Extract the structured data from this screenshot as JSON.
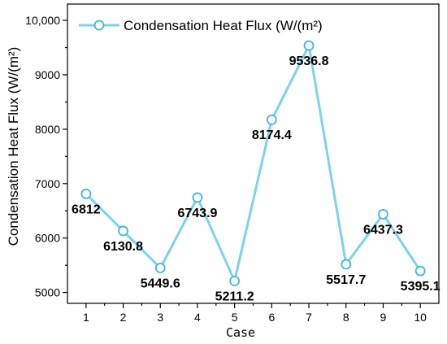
{
  "chart_data": {
    "type": "line",
    "x": [
      1,
      2,
      3,
      4,
      5,
      6,
      7,
      8,
      9,
      10
    ],
    "series": [
      {
        "name": "Condensation Heat Flux (W/(m²)",
        "values": [
          6812,
          6130.8,
          5449.6,
          6743.9,
          5211.2,
          8174.4,
          9536.8,
          5517.7,
          6437.3,
          5395.1
        ],
        "labels": [
          "6812",
          "6130.8",
          "5449.6",
          "6743.9",
          "5211.2",
          "8174.4",
          "9536.8",
          "5517.7",
          "6437.3",
          "5395.1"
        ],
        "color": "#7dd3e8"
      }
    ],
    "xlabel": "Case",
    "ylabel": "Condensation Heat Flux (W/(m²)",
    "xlim": [
      0.5,
      10.5
    ],
    "ylim": [
      4800,
      10300
    ],
    "xticks": [
      1,
      2,
      3,
      4,
      5,
      6,
      7,
      8,
      9,
      10
    ],
    "xtick_labels": [
      "1",
      "2",
      "3",
      "4",
      "5",
      "6",
      "7",
      "8",
      "9",
      "10"
    ],
    "yticks": [
      5000,
      6000,
      7000,
      8000,
      9000,
      10000
    ],
    "ytick_labels": [
      "5000",
      "6000",
      "7000",
      "8000",
      "9000",
      "10,000"
    ],
    "grid": false,
    "legend_position": "top-left",
    "marker": "hollow-circle"
  }
}
